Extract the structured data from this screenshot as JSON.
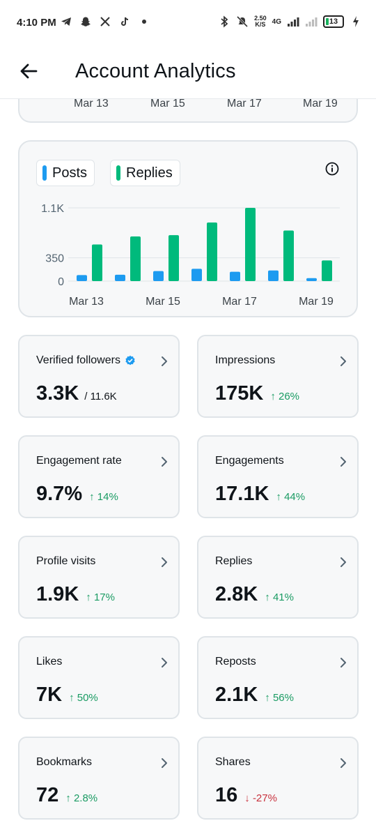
{
  "status_bar": {
    "time": "4:10 PM",
    "speed_top": "2.50",
    "speed_bottom": "K/S",
    "network": "4G",
    "battery": "13"
  },
  "header": {
    "title": "Account Analytics"
  },
  "prev_chart": {
    "x_labels": [
      "Mar 13",
      "Mar 15",
      "Mar 17",
      "Mar 19"
    ]
  },
  "legend": {
    "posts": "Posts",
    "replies": "Replies"
  },
  "colors": {
    "posts": "#1d9bf0",
    "replies": "#00ba7c",
    "up": "#1a9b63",
    "down": "#c8323e"
  },
  "chart_data": {
    "type": "bar",
    "categories": [
      "Mar 13",
      "Mar 14",
      "Mar 15",
      "Mar 16",
      "Mar 17",
      "Mar 18",
      "Mar 19"
    ],
    "x_tick_labels": [
      "Mar 13",
      "Mar 15",
      "Mar 17",
      "Mar 19"
    ],
    "y_tick_labels": [
      "0",
      "350",
      "1.1K"
    ],
    "y_ticks": [
      0,
      350,
      1100
    ],
    "ylim": [
      0,
      1100
    ],
    "series": [
      {
        "name": "Posts",
        "values": [
          90,
          95,
          150,
          185,
          140,
          160,
          45
        ]
      },
      {
        "name": "Replies",
        "values": [
          550,
          670,
          690,
          880,
          1100,
          760,
          310
        ]
      }
    ],
    "grid": true,
    "legend": "top-left"
  },
  "stats": [
    {
      "label": "Verified followers",
      "value": "3.3K",
      "extra": "/ 11.6K",
      "change": "",
      "direction": "",
      "verified": true
    },
    {
      "label": "Impressions",
      "value": "175K",
      "extra": "",
      "change": "26%",
      "direction": "up",
      "verified": false
    },
    {
      "label": "Engagement rate",
      "value": "9.7%",
      "extra": "",
      "change": "14%",
      "direction": "up",
      "verified": false
    },
    {
      "label": "Engagements",
      "value": "17.1K",
      "extra": "",
      "change": "44%",
      "direction": "up",
      "verified": false
    },
    {
      "label": "Profile visits",
      "value": "1.9K",
      "extra": "",
      "change": "17%",
      "direction": "up",
      "verified": false
    },
    {
      "label": "Replies",
      "value": "2.8K",
      "extra": "",
      "change": "41%",
      "direction": "up",
      "verified": false
    },
    {
      "label": "Likes",
      "value": "7K",
      "extra": "",
      "change": "50%",
      "direction": "up",
      "verified": false
    },
    {
      "label": "Reposts",
      "value": "2.1K",
      "extra": "",
      "change": "56%",
      "direction": "up",
      "verified": false
    },
    {
      "label": "Bookmarks",
      "value": "72",
      "extra": "",
      "change": "2.8%",
      "direction": "up",
      "verified": false
    },
    {
      "label": "Shares",
      "value": "16",
      "extra": "",
      "change": "-27%",
      "direction": "down",
      "verified": false
    }
  ]
}
